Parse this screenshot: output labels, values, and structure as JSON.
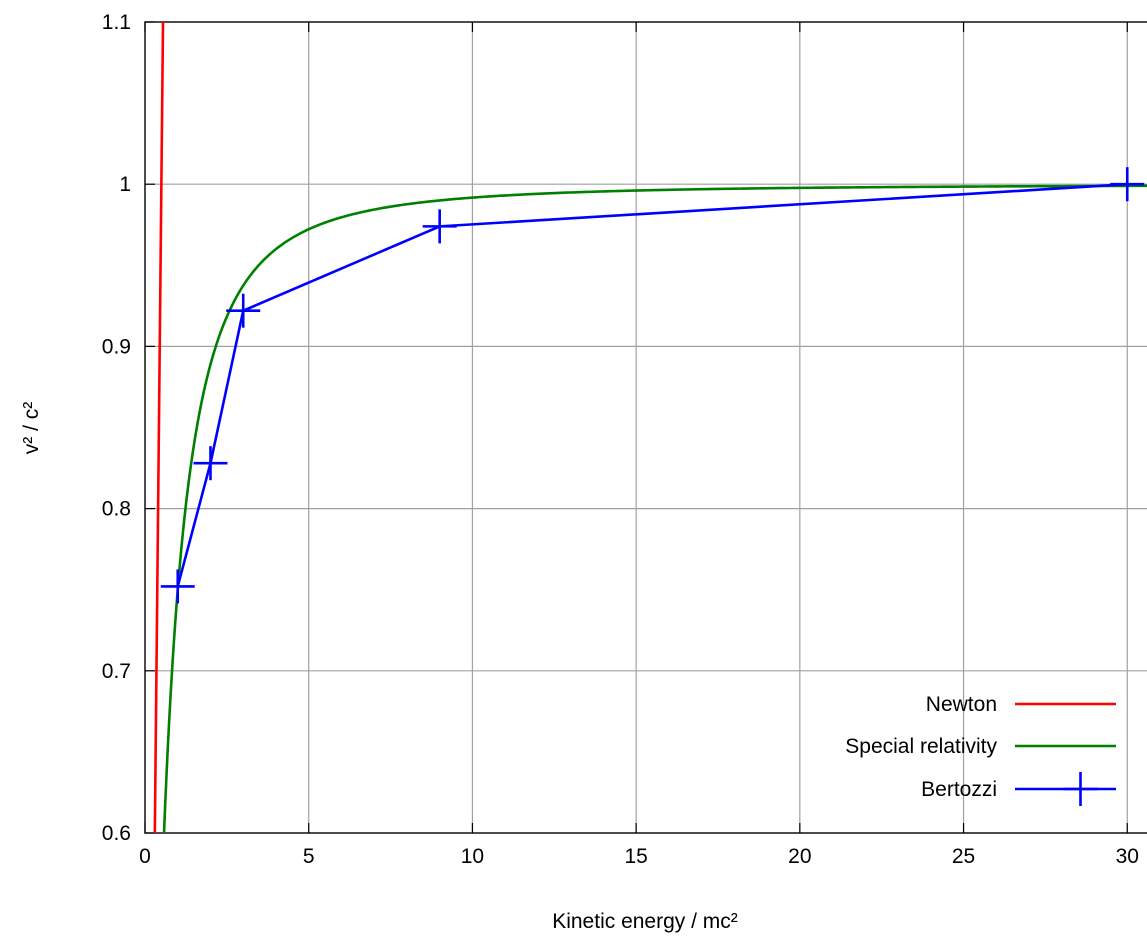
{
  "chart_data": {
    "type": "line",
    "title": "",
    "xlabel": "Kinetic energy / mc²",
    "ylabel": "v² / c²",
    "xlim": [
      0,
      31
    ],
    "ylim": [
      0.6,
      1.1
    ],
    "grid": true,
    "x_ticks": [
      0,
      5,
      10,
      15,
      20,
      25,
      30
    ],
    "x_tick_labels": [
      "0",
      "5",
      "10",
      "15",
      "20",
      "25",
      "30"
    ],
    "y_ticks": [
      0.6,
      0.7,
      0.8,
      0.9,
      1.0,
      1.1
    ],
    "y_tick_labels": [
      "0.6",
      "0.7",
      "0.8",
      "0.9",
      "1",
      "1.1"
    ],
    "legend_position": "bottom-right",
    "series": [
      {
        "name": "Newton",
        "color": "#ff0000",
        "formula": "v²/c² = 2·KE/mc²",
        "style": "line"
      },
      {
        "name": "Special relativity",
        "color": "#008000",
        "formula": "v²/c² = 1 − 1/(1 + KE/mc²)²",
        "style": "line"
      },
      {
        "name": "Bertozzi",
        "color": "#0000ff",
        "style": "linespoints",
        "marker": "plus",
        "points": [
          {
            "x": 1,
            "y": 0.752
          },
          {
            "x": 2,
            "y": 0.828
          },
          {
            "x": 3,
            "y": 0.922
          },
          {
            "x": 9,
            "y": 0.974
          },
          {
            "x": 30,
            "y": 1.0
          }
        ]
      }
    ]
  }
}
